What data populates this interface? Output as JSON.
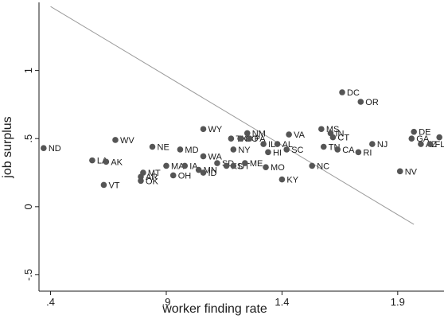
{
  "chart_data": {
    "type": "scatter",
    "xlabel": "worker finding rate",
    "ylabel": "job surplus",
    "xlim": [
      0.35,
      2.1
    ],
    "ylim": [
      -0.62,
      1.5
    ],
    "xticks": [
      {
        "value": 0.4,
        "label": ".4"
      },
      {
        "value": 0.9,
        "label": ".9"
      },
      {
        "value": 1.4,
        "label": "1.4"
      },
      {
        "value": 1.9,
        "label": "1.9"
      }
    ],
    "yticks": [
      {
        "value": -0.5,
        "label": "-.5"
      },
      {
        "value": 0,
        "label": "0"
      },
      {
        "value": 0.5,
        "label": ".5"
      },
      {
        "value": 1,
        "label": "1"
      }
    ],
    "grid": false,
    "colors": {
      "points": "#555555",
      "fit_line": "#9a9a9a",
      "axes": "#1a1a1a"
    },
    "fit_line": {
      "x": [
        0.4,
        1.97
      ],
      "y": [
        1.47,
        -0.13
      ]
    },
    "points": [
      {
        "label": "ND",
        "x": 0.37,
        "y": 0.43
      },
      {
        "label": "LA",
        "x": 0.58,
        "y": 0.34
      },
      {
        "label": "AK",
        "x": 0.64,
        "y": 0.33
      },
      {
        "label": "WV",
        "x": 0.68,
        "y": 0.49
      },
      {
        "label": "VT",
        "x": 0.63,
        "y": 0.16
      },
      {
        "label": "AR",
        "x": 0.79,
        "y": 0.22
      },
      {
        "label": "MT",
        "x": 0.8,
        "y": 0.25
      },
      {
        "label": "OK",
        "x": 0.79,
        "y": 0.19
      },
      {
        "label": "NE",
        "x": 0.84,
        "y": 0.44
      },
      {
        "label": "MA",
        "x": 0.9,
        "y": 0.3
      },
      {
        "label": "IA",
        "x": 0.98,
        "y": 0.3
      },
      {
        "label": "OH",
        "x": 0.93,
        "y": 0.23
      },
      {
        "label": "MD",
        "x": 0.96,
        "y": 0.42
      },
      {
        "label": "WY",
        "x": 1.06,
        "y": 0.57
      },
      {
        "label": "WA",
        "x": 1.06,
        "y": 0.37
      },
      {
        "label": "MN",
        "x": 1.04,
        "y": 0.27
      },
      {
        "label": "ID",
        "x": 1.06,
        "y": 0.25
      },
      {
        "label": "SD",
        "x": 1.12,
        "y": 0.32
      },
      {
        "label": "KS",
        "x": 1.16,
        "y": 0.3
      },
      {
        "label": "UT",
        "x": 1.19,
        "y": 0.3
      },
      {
        "label": "TX",
        "x": 1.18,
        "y": 0.5
      },
      {
        "label": "CO",
        "x": 1.22,
        "y": 0.5
      },
      {
        "label": "PA",
        "x": 1.26,
        "y": 0.5
      },
      {
        "label": "NY",
        "x": 1.19,
        "y": 0.42
      },
      {
        "label": "NM",
        "x": 1.25,
        "y": 0.54
      },
      {
        "label": "ME",
        "x": 1.24,
        "y": 0.32
      },
      {
        "label": "IL",
        "x": 1.32,
        "y": 0.46
      },
      {
        "label": "MO",
        "x": 1.33,
        "y": 0.29
      },
      {
        "label": "HI",
        "x": 1.34,
        "y": 0.4
      },
      {
        "label": "AL",
        "x": 1.38,
        "y": 0.46
      },
      {
        "label": "SC",
        "x": 1.42,
        "y": 0.42
      },
      {
        "label": "VA",
        "x": 1.43,
        "y": 0.53
      },
      {
        "label": "KY",
        "x": 1.4,
        "y": 0.2
      },
      {
        "label": "NC",
        "x": 1.53,
        "y": 0.3
      },
      {
        "label": "MS",
        "x": 1.57,
        "y": 0.57
      },
      {
        "label": "TN",
        "x": 1.58,
        "y": 0.44
      },
      {
        "label": "CA",
        "x": 1.64,
        "y": 0.42
      },
      {
        "label": "IN",
        "x": 1.61,
        "y": 0.54
      },
      {
        "label": "CT",
        "x": 1.62,
        "y": 0.51
      },
      {
        "label": "DC",
        "x": 1.66,
        "y": 0.84
      },
      {
        "label": "OR",
        "x": 1.74,
        "y": 0.77
      },
      {
        "label": "RI",
        "x": 1.73,
        "y": 0.4
      },
      {
        "label": "NJ",
        "x": 1.79,
        "y": 0.46
      },
      {
        "label": "NV",
        "x": 1.91,
        "y": 0.26
      },
      {
        "label": "DE",
        "x": 1.97,
        "y": 0.55
      },
      {
        "label": "GA",
        "x": 1.96,
        "y": 0.5
      },
      {
        "label": "AZ",
        "x": 2.0,
        "y": 0.46
      },
      {
        "label": "FL",
        "x": 2.04,
        "y": 0.46
      },
      {
        "label": "C",
        "x": 2.08,
        "y": 0.51
      }
    ]
  }
}
